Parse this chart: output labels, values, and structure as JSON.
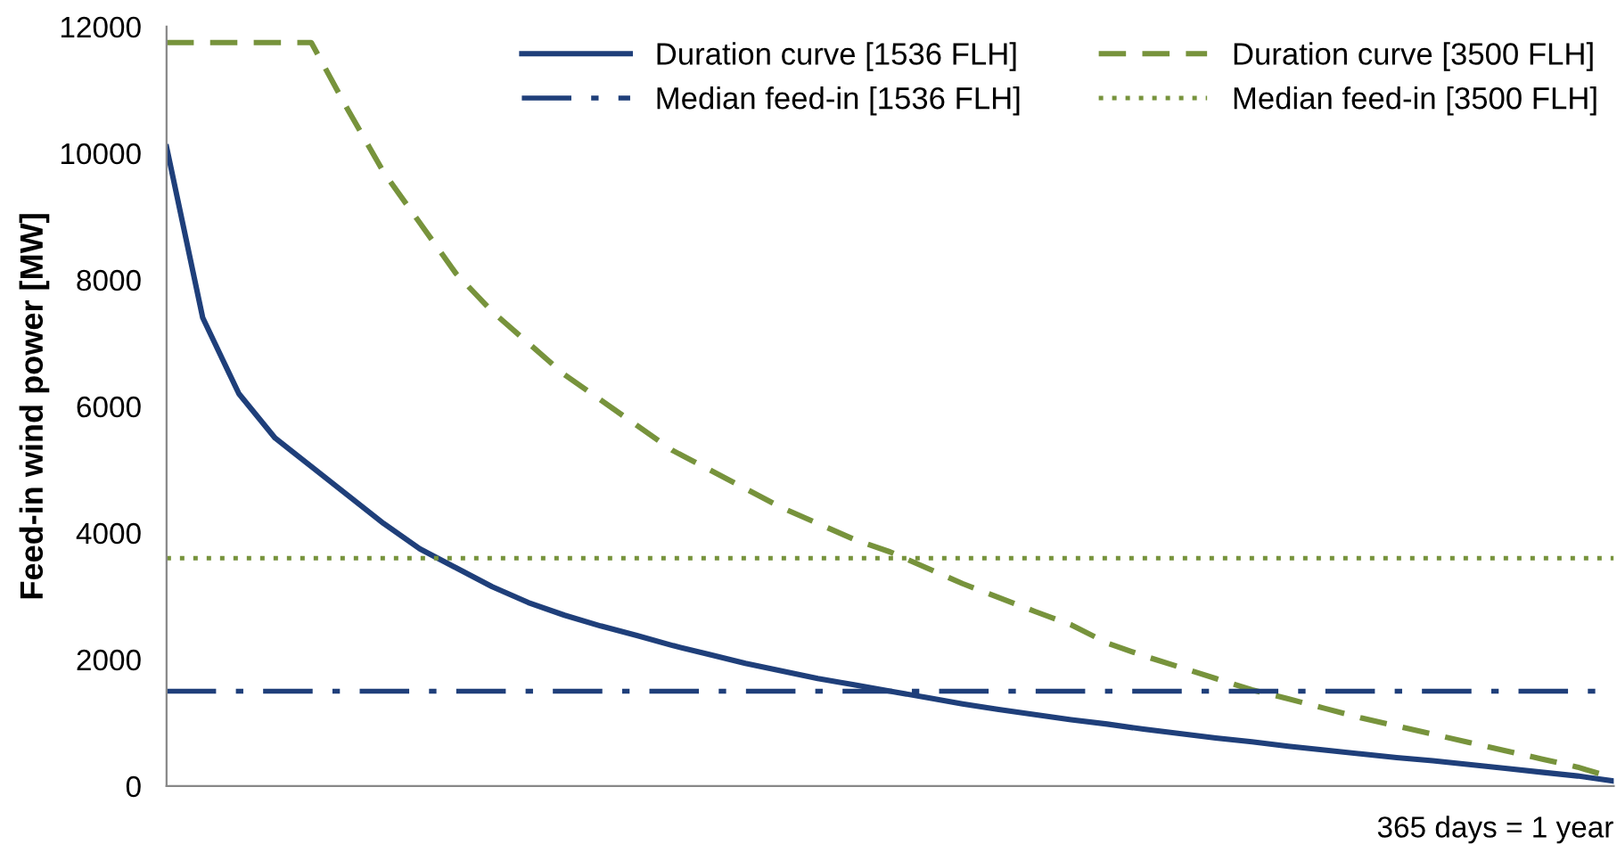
{
  "chart_data": {
    "type": "line",
    "ylabel": "Feed-in wind power [MW]",
    "xlabel": "365 days = 1 year",
    "categories": [
      null,
      null,
      null,
      null,
      null,
      null,
      null,
      null,
      null,
      null,
      null,
      null,
      null,
      null,
      null,
      null,
      null,
      null,
      null,
      null,
      null,
      null,
      null,
      null,
      null,
      null,
      null,
      null,
      null,
      null,
      null,
      null,
      null,
      null,
      null,
      null,
      null,
      null,
      null,
      null,
      null
    ],
    "series": [
      {
        "name": "Duration curve [1536 FLH]",
        "color": "#1f3f7a",
        "line_style": "solid",
        "values": [
          10100,
          7400,
          6200,
          5500,
          5050,
          4600,
          4150,
          3750,
          3450,
          3150,
          2900,
          2700,
          2530,
          2380,
          2220,
          2080,
          1940,
          1820,
          1700,
          1600,
          1500,
          1400,
          1300,
          1210,
          1130,
          1050,
          980,
          900,
          830,
          760,
          700,
          630,
          570,
          510,
          450,
          400,
          340,
          280,
          220,
          160,
          80
        ]
      },
      {
        "name": "Duration curve [3500 FLH]",
        "color": "#77933c",
        "line_style": "dashed",
        "values": [
          11750,
          11750,
          11750,
          11750,
          11750,
          10700,
          9700,
          8900,
          8100,
          7500,
          7000,
          6500,
          6100,
          5700,
          5300,
          5000,
          4700,
          4400,
          4150,
          3900,
          3700,
          3450,
          3200,
          2980,
          2760,
          2550,
          2260,
          2060,
          1880,
          1700,
          1520,
          1380,
          1230,
          1080,
          950,
          820,
          690,
          560,
          430,
          300,
          130
        ]
      }
    ],
    "ref_lines": [
      {
        "axis": "y",
        "value": 1500,
        "label": "Median feed-in [1536 FLH]",
        "color": "#1f3f7a",
        "line_style": "dashdot"
      },
      {
        "axis": "y",
        "value": 3600,
        "label": "Median feed-in [3500 FLH]",
        "color": "#77933c",
        "line_style": "dotted"
      }
    ],
    "ylim": [
      0,
      12000
    ],
    "yticks": [
      0,
      2000,
      4000,
      6000,
      8000,
      10000,
      12000
    ],
    "grid": false,
    "legend": "top right",
    "marker": "none",
    "tick_labels": "y"
  }
}
